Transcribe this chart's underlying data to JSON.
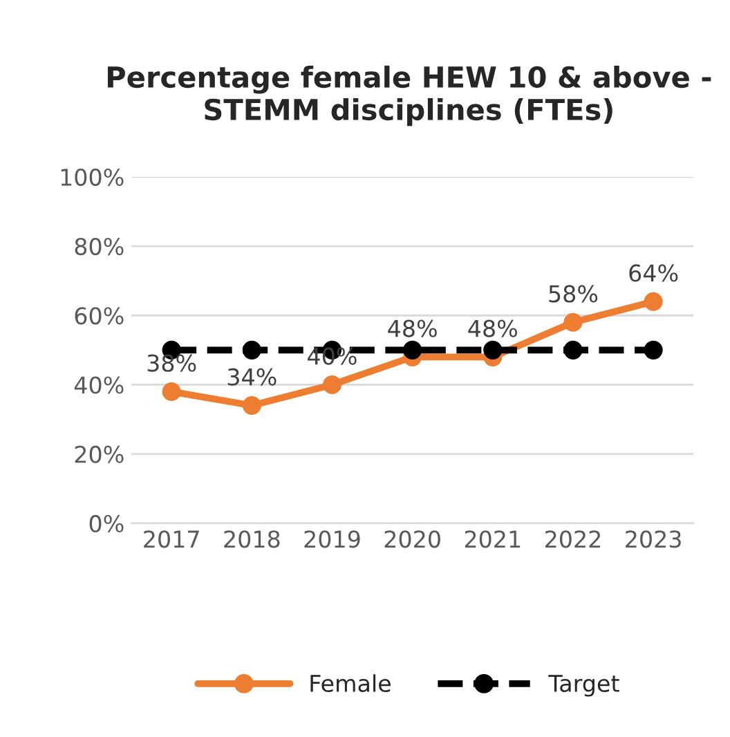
{
  "chart_data": {
    "type": "line",
    "title": "Percentage female HEW 10 & above - STEMM disciplines (FTEs)",
    "categories": [
      "2017",
      "2018",
      "2019",
      "2020",
      "2021",
      "2022",
      "2023"
    ],
    "series": [
      {
        "name": "Female",
        "color": "#ed7d31",
        "values": [
          38,
          34,
          40,
          48,
          48,
          58,
          64
        ],
        "value_labels": [
          "38%",
          "34%",
          "40%",
          "48%",
          "48%",
          "58%",
          "64%"
        ],
        "line_style": "solid"
      },
      {
        "name": "Target",
        "color": "#000000",
        "values": [
          50,
          50,
          50,
          50,
          50,
          50,
          50
        ],
        "line_style": "dashed"
      }
    ],
    "ylim": [
      0,
      100
    ],
    "yticks": [
      {
        "value": 0,
        "label": "0%"
      },
      {
        "value": 20,
        "label": "20%"
      },
      {
        "value": 40,
        "label": "40%"
      },
      {
        "value": 60,
        "label": "60%"
      },
      {
        "value": 80,
        "label": "80%"
      },
      {
        "value": 100,
        "label": "100%"
      }
    ],
    "grid": "y",
    "legend": "bottom",
    "marker": "circle"
  }
}
